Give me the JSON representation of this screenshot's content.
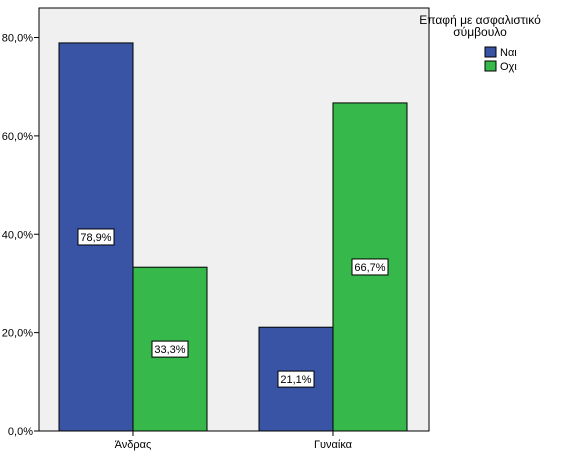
{
  "chart_data": {
    "type": "bar",
    "categories": [
      "Άνδρας",
      "Γυναίκα"
    ],
    "series": [
      {
        "name": "Ναι",
        "values": [
          78.9,
          21.1
        ],
        "color": "#3953a5"
      },
      {
        "name": "Οχι",
        "values": [
          33.3,
          66.7
        ],
        "color": "#37b84a"
      }
    ],
    "data_labels": [
      [
        "78,9%",
        "21,1%"
      ],
      [
        "33,3%",
        "66,7%"
      ]
    ],
    "yticks": [
      {
        "value": 0,
        "label": "0,0%"
      },
      {
        "value": 20,
        "label": "20,0%"
      },
      {
        "value": 40,
        "label": "40,0%"
      },
      {
        "value": 60,
        "label": "60,0%"
      },
      {
        "value": 80,
        "label": "80,0%"
      }
    ],
    "ylim": [
      0,
      86
    ],
    "grid": false,
    "legend": {
      "placement": "top-right",
      "title_lines": [
        "Επαφή με ασφαλιστικό",
        "σύμβουλο"
      ]
    },
    "plot_background": "#f0f0f0",
    "axis_color": "#000000"
  }
}
